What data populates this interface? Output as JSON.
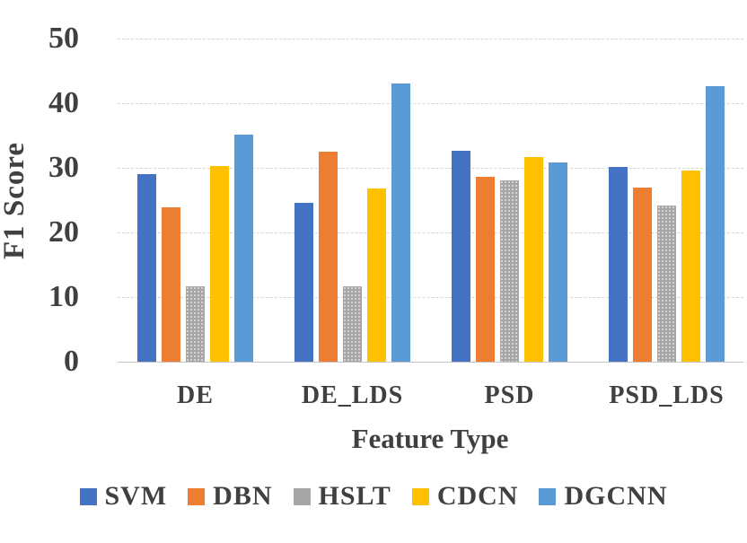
{
  "figure": {
    "background": "#ffffff",
    "text_color": "#404040",
    "gridline_color": "#d4d4d4",
    "axis_line_color": "#c3c3c3"
  },
  "chart_data": {
    "type": "bar",
    "title": "",
    "xlabel": "Feature Type",
    "ylabel": "F1 Score",
    "ylim": [
      0,
      50
    ],
    "yticks": [
      0,
      10,
      20,
      30,
      40,
      50
    ],
    "grid": "horizontal-dashed",
    "legend_position": "bottom",
    "categories": [
      "DE",
      "DE_LDS",
      "PSD",
      "PSD_LDS"
    ],
    "series": [
      {
        "name": "SVM",
        "color": "#4472C4",
        "pattern": "solid",
        "values": [
          29.0,
          24.6,
          32.7,
          30.1
        ]
      },
      {
        "name": "DBN",
        "color": "#ED7D31",
        "pattern": "solid",
        "values": [
          23.9,
          32.5,
          28.6,
          27.0
        ]
      },
      {
        "name": "HSLT",
        "color": "#A6A6A6",
        "pattern": "dotted",
        "values": [
          11.6,
          11.6,
          28.1,
          24.1
        ]
      },
      {
        "name": "CDCN",
        "color": "#FFC000",
        "pattern": "solid",
        "values": [
          30.3,
          26.8,
          31.6,
          29.6
        ]
      },
      {
        "name": "DGCNN",
        "color": "#5B9BD5",
        "pattern": "solid",
        "values": [
          35.2,
          43.0,
          30.9,
          42.7
        ]
      }
    ]
  }
}
